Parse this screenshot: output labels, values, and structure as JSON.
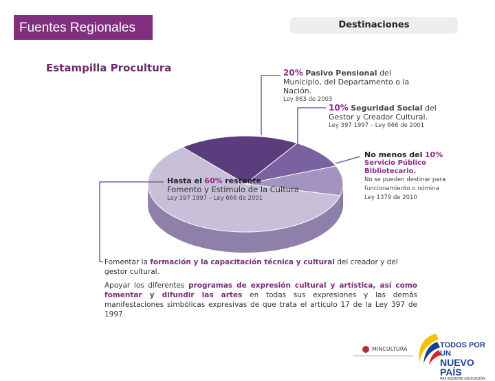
{
  "header": {
    "title": "Fuentes Regionales",
    "tab": "Destinaciones"
  },
  "subtitle": "Estampilla Procultura",
  "chart_data": {
    "type": "pie",
    "values": [
      20,
      10,
      10,
      60
    ],
    "value_labels": [
      "20%",
      "10%",
      "10%",
      "60%"
    ],
    "colors": [
      "#5b3d7d",
      "#7a61a0",
      "#a393c0",
      "#c8c0d8"
    ],
    "side_colors": [
      "#463060",
      "#5e4a80",
      "#8576a3",
      "#8f80aa"
    ]
  },
  "annotations": [
    {
      "title": "Pasivo Pensional",
      "text": "del Municipio, del Departamento o la Nación.",
      "law": "Ley 863 de 2003"
    },
    {
      "title": "Seguridad Social",
      "text": "del Gestor y Creador Cultural.",
      "law": "Ley 397 1997 – Ley 666 de 2001"
    },
    {
      "lead": "No menos del",
      "title": "Servicio Público Bibliotecario.",
      "text": "No se pueden destinar para funcionamiento o nómina",
      "law": "Ley 1379 de 2010"
    },
    {
      "lead": "Hasta el",
      "tail": "restante",
      "title": "Fomento y Estímulo de la Cultura",
      "law": "Ley 397 1997 – Ley 666 de 2001"
    }
  ],
  "footer": {
    "line1": [
      "Fomentar la",
      "formación y la capacitación técnica y cultural",
      "del creador y del gestor cultural."
    ],
    "line2": [
      "Apoyar los diferentes",
      "programas de expresión cultural y artística, así como fomentar y difundir las artes",
      "en todas sus expresiones y las demás manifestaciones simbólicas expresivas de que trata el artículo 17 de la Ley 397 de 1997."
    ]
  },
  "logos": {
    "ministry": "MINCULTURA",
    "gov1": "TODOS POR UN",
    "gov2": "NUEVO PAÍS",
    "gov3": "PAZ EQUIDAD EDUCACIÓN"
  }
}
